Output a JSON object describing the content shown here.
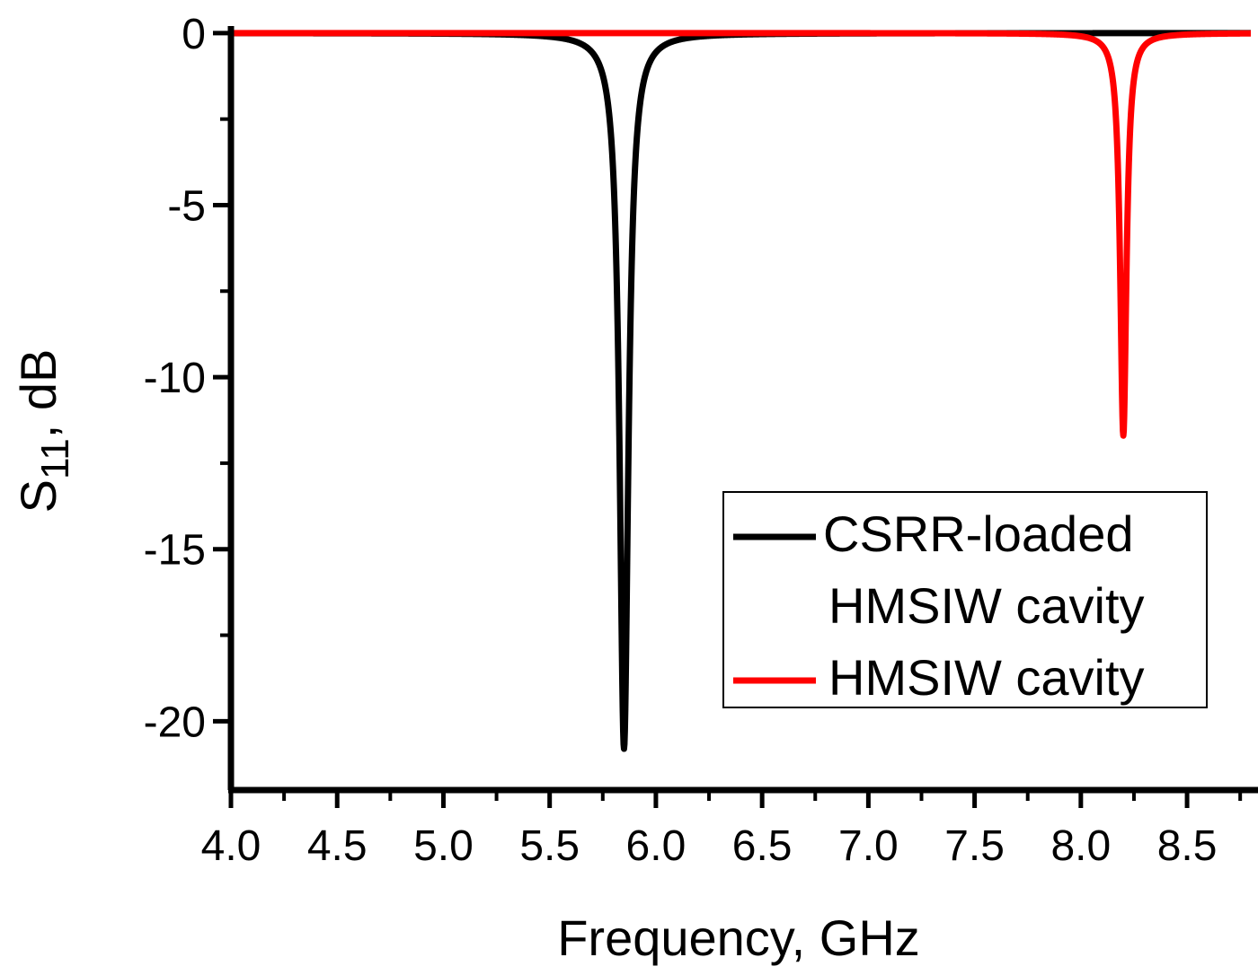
{
  "chart_data": {
    "type": "line",
    "title": "",
    "xlabel": "Frequency, GHz",
    "ylabel_main": "S",
    "ylabel_sub": "11",
    "ylabel_rest": ", dB",
    "xlim": [
      4.0,
      8.8
    ],
    "ylim": [
      -22,
      0.1
    ],
    "x_ticks": [
      "4.0",
      "4.5",
      "5.0",
      "5.5",
      "6.0",
      "6.5",
      "7.0",
      "7.5",
      "8.0",
      "8.5"
    ],
    "y_ticks": [
      "0",
      "-5",
      "-10",
      "-15",
      "-20"
    ],
    "grid": false,
    "legend_position": "bottom-right",
    "series": [
      {
        "name_lines": [
          "CSRR-loaded",
          "HMSIW cavity"
        ],
        "color": "#000000",
        "resonance_freq": 5.85,
        "min_db": -20.8,
        "q_width": 0.025
      },
      {
        "name_lines": [
          "HMSIW cavity"
        ],
        "color": "#ff0000",
        "resonance_freq": 8.2,
        "min_db": -11.7,
        "q_width": 0.018
      }
    ]
  }
}
